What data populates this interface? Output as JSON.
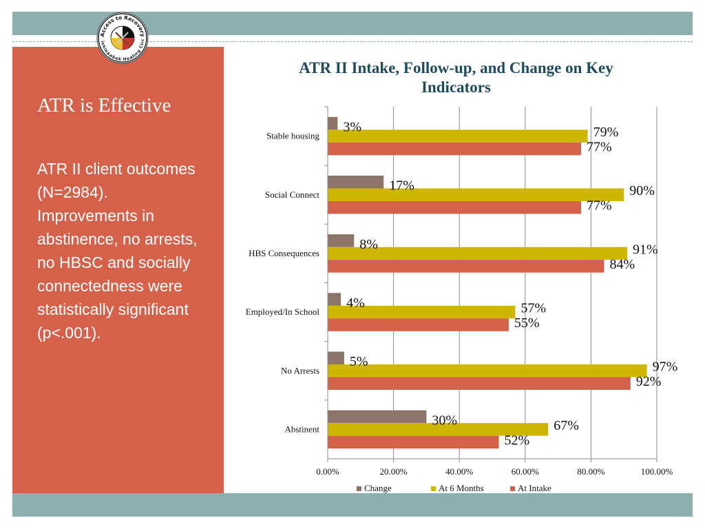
{
  "slide": {
    "heading": "ATR is Effective",
    "body": "ATR II client outcomes (N=2984). Improvements in abstinence, no arrests, no HBSC and socially connectedness were statistically significant (p<.001).",
    "logo_text_top": "Access to Recovery",
    "logo_text_bottom": "Anishinaabek Healing Circle",
    "colors": {
      "band": "#8eafb0",
      "panel": "#d5614a",
      "title": "#1f4b5c"
    }
  },
  "chart_data": {
    "type": "bar",
    "orientation": "horizontal",
    "title": "ATR II Intake, Follow-up, and  Change on Key Indicators",
    "categories": [
      "Stable housing",
      "Social Connect",
      "HBS Consequences",
      "Employed/In School",
      "No Arrests",
      "Abstinent"
    ],
    "series": [
      {
        "name": "Change",
        "color": "#8c7469",
        "values": [
          3,
          17,
          8,
          4,
          5,
          30
        ],
        "labels": [
          "3%",
          "17%",
          "8%",
          "4%",
          "5%",
          "30%"
        ]
      },
      {
        "name": "At 6 Months",
        "color": "#cfb603",
        "values": [
          79,
          90,
          91,
          57,
          97,
          67
        ],
        "labels": [
          "79%",
          "90%",
          "91%",
          "57%",
          "97%",
          "67%"
        ]
      },
      {
        "name": "At Intake",
        "color": "#d5614a",
        "values": [
          77,
          77,
          84,
          55,
          92,
          52
        ],
        "labels": [
          "77%",
          "77%",
          "84%",
          "55%",
          "92%",
          "52%"
        ]
      }
    ],
    "xlim": [
      0,
      100
    ],
    "xticks": [
      "0.00%",
      "20.00%",
      "40.00%",
      "60.00%",
      "80.00%",
      "100.00%"
    ],
    "grid": true,
    "legend": "bottom"
  }
}
